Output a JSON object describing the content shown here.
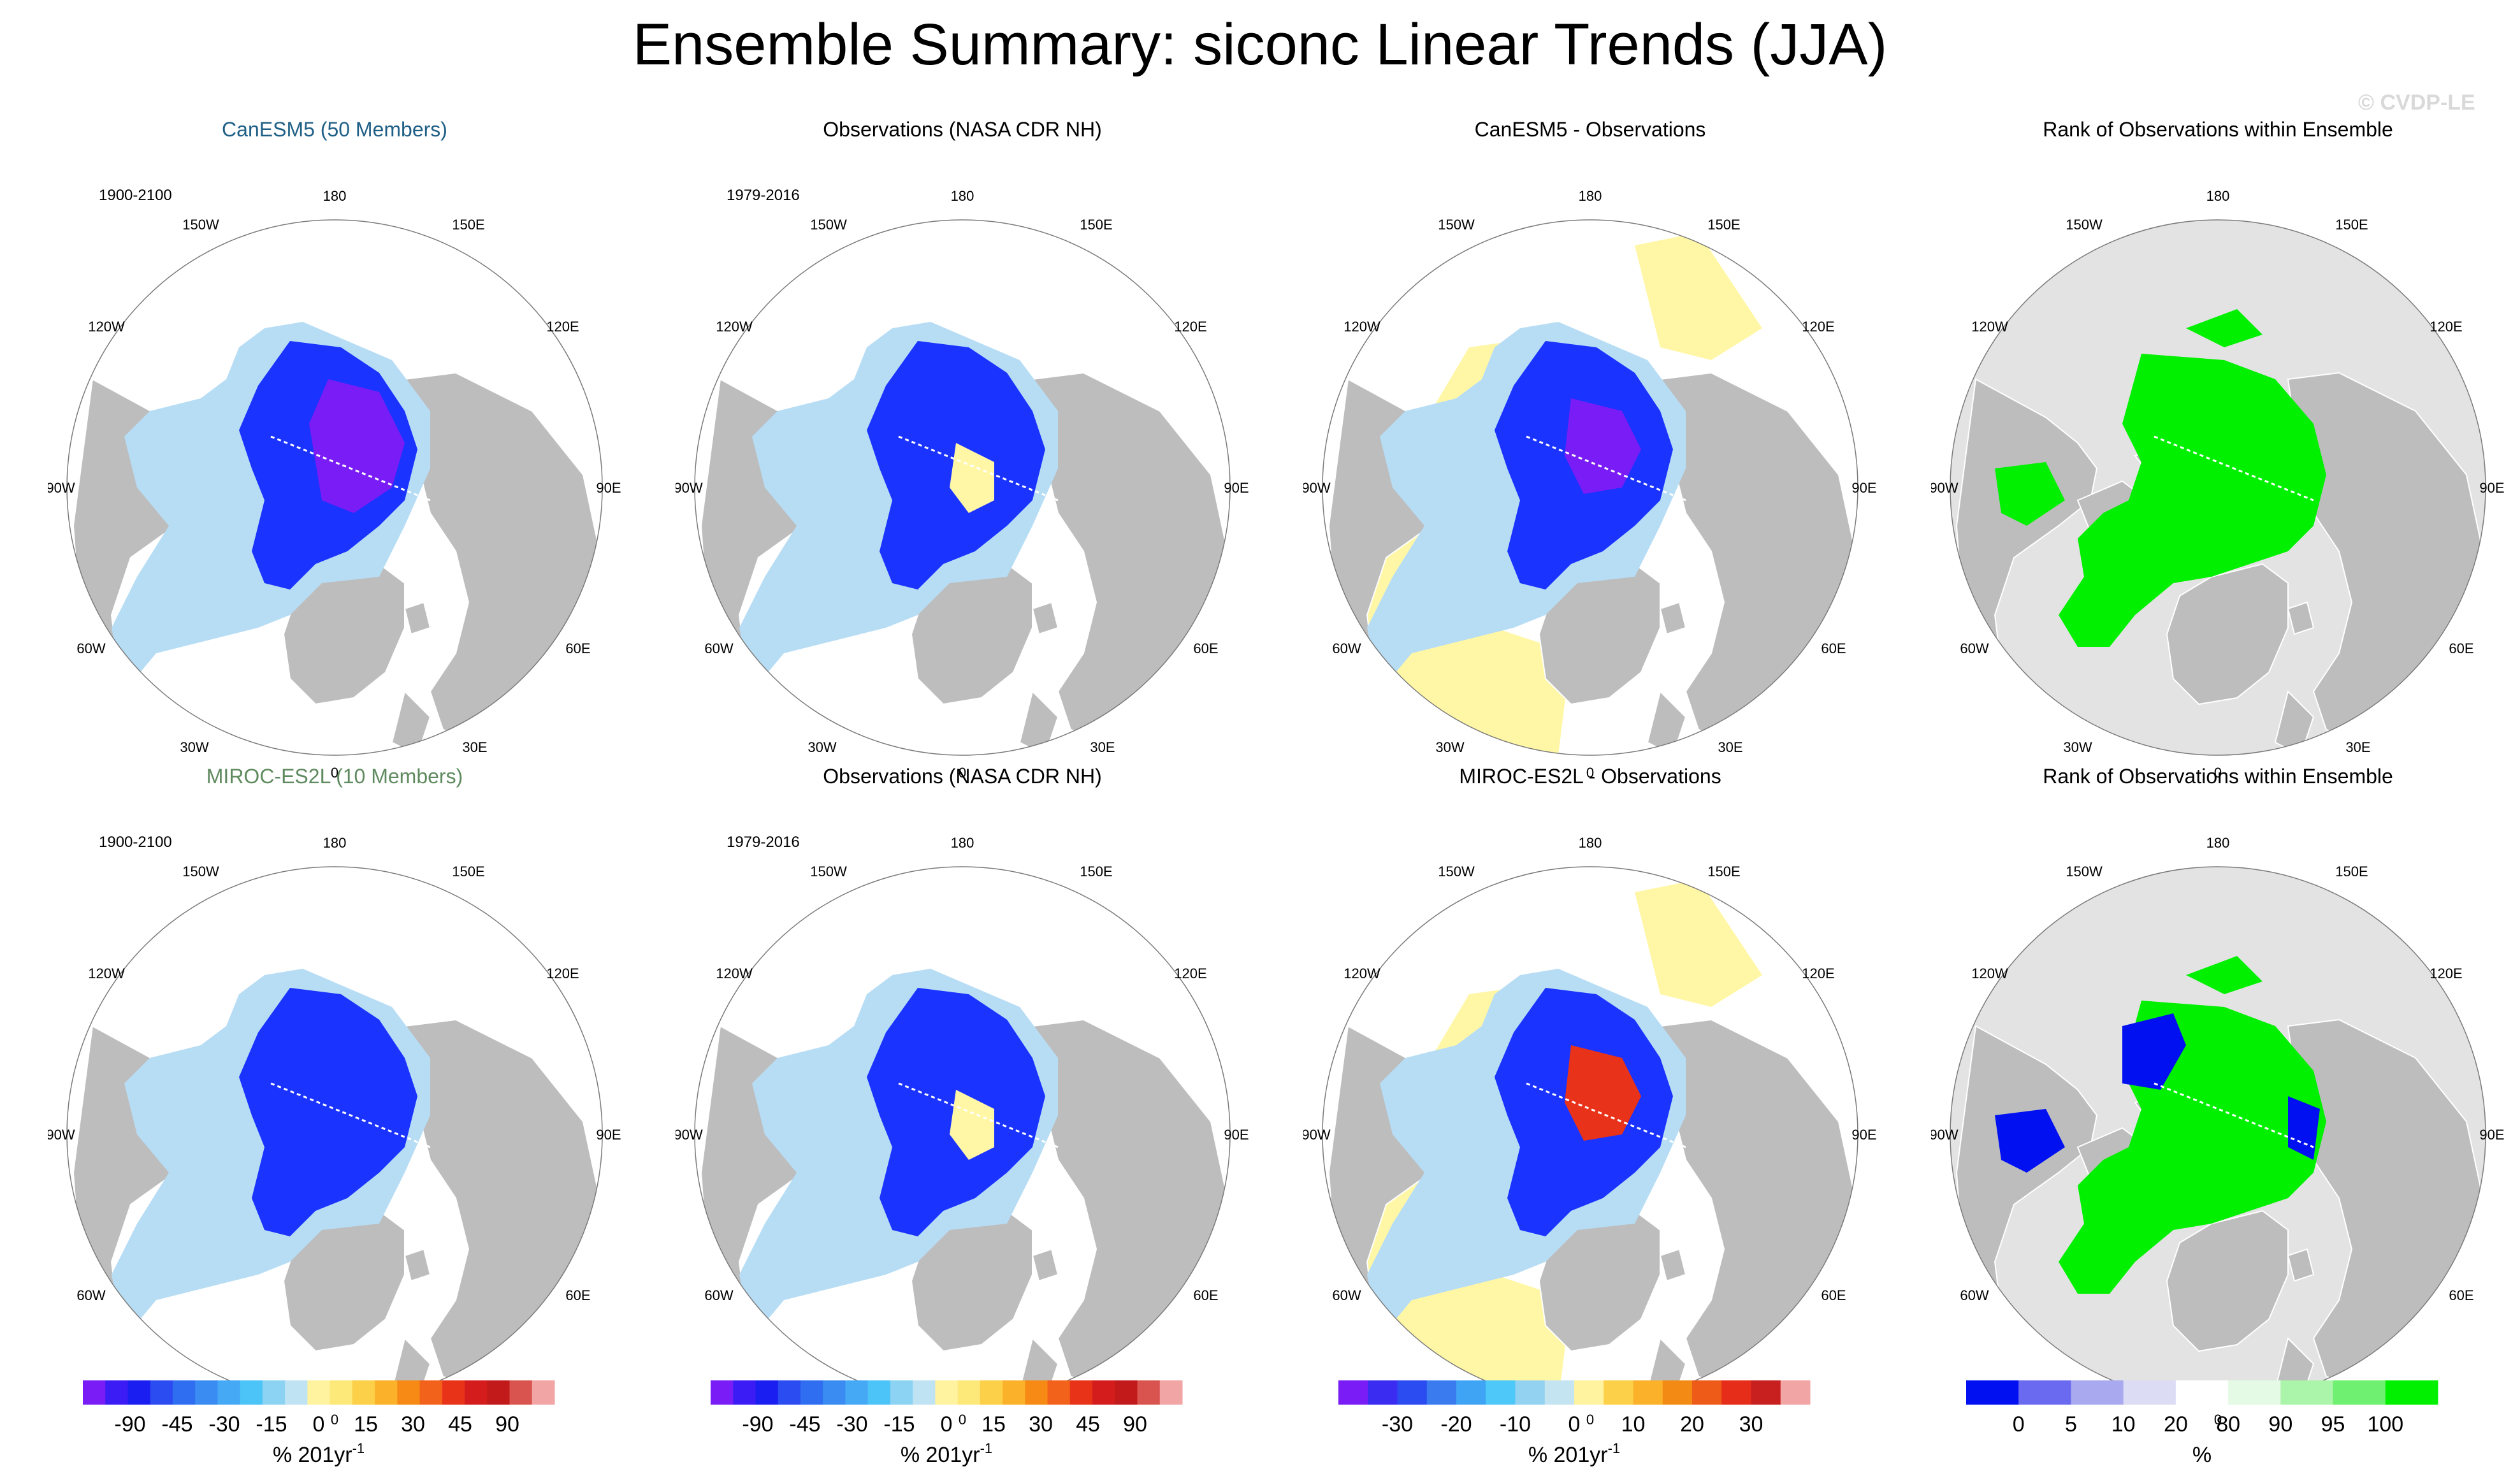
{
  "title": "Ensemble Summary: siconc Linear Trends (JJA)",
  "watermark": "© CVDP-LE",
  "colors": {
    "land": "#bdbdbd",
    "ocean": "#ffffff",
    "rank_background": "#e3e3e3",
    "canesm5_title": "#1f5f86",
    "miroc_title": "#5f8a5f",
    "pale_yellow": "#fff7a6",
    "trend_strong": "#7a1cf5",
    "trend_mid": "#1a33ff",
    "trend_light": "#b7ddf5",
    "rank_high": "#00f000",
    "rank_low": "#0010f0"
  },
  "lon_labels": {
    "top": "180",
    "bottom": "0",
    "l150": "150W",
    "r150": "150E",
    "l120": "120W",
    "r120": "120E",
    "l90": "90W",
    "r90": "90E",
    "l60": "60W",
    "r60": "60E",
    "l30": "30W",
    "r30": "30E"
  },
  "panels": [
    {
      "title": "CanESM5 (50 Members)",
      "period": "1900-2100"
    },
    {
      "title": "Observations (NASA CDR NH)",
      "period": "1979-2016"
    },
    {
      "title": "CanESM5 - Observations",
      "period": ""
    },
    {
      "title": "Rank of Observations within Ensemble",
      "period": ""
    },
    {
      "title": "MIROC-ES2L (10 Members)",
      "period": "1900-2100"
    },
    {
      "title": "Observations (NASA CDR NH)",
      "period": "1979-2016"
    },
    {
      "title": "MIROC-ES2L - Observations",
      "period": ""
    },
    {
      "title": "Rank of Observations within Ensemble",
      "period": ""
    }
  ],
  "colorbars": [
    {
      "ticks": [
        "-90",
        "-45",
        "-30",
        "-15",
        "0",
        "15",
        "30",
        "45",
        "90"
      ],
      "unit": "% 201yr",
      "unit_sup": "-1"
    },
    {
      "ticks": [
        "-90",
        "-45",
        "-30",
        "-15",
        "0",
        "15",
        "30",
        "45",
        "90"
      ],
      "unit": "% 201yr",
      "unit_sup": "-1"
    },
    {
      "ticks": [
        "-30",
        "-20",
        "-10",
        "0",
        "10",
        "20",
        "30"
      ],
      "unit": "% 201yr",
      "unit_sup": "-1"
    },
    {
      "ticks": [
        "0",
        "5",
        "10",
        "20",
        "80",
        "90",
        "95",
        "100"
      ],
      "unit": "%",
      "unit_sup": ""
    }
  ],
  "trend_palette": [
    "#7a1cf5",
    "#3c1cf5",
    "#1a1ef0",
    "#2a4cf0",
    "#2f6ef0",
    "#3a8cf2",
    "#45a9f6",
    "#4cc4f8",
    "#8cd3f3",
    "#bfe3f3",
    "#fff3a0",
    "#fde87a",
    "#fcd048",
    "#fbb22a",
    "#f78a14",
    "#f2621a",
    "#e83319",
    "#d41c1c",
    "#c21a1a",
    "#d9544f",
    "#f2a5a5"
  ],
  "diff_palette": [
    "#7a1cf5",
    "#3a2cf0",
    "#2a4cf0",
    "#3a7cf0",
    "#40a4f4",
    "#4ec8f8",
    "#93d2f0",
    "#c4e4f2",
    "#fff3a0",
    "#fdd04a",
    "#fbb22a",
    "#f38a14",
    "#ee5a18",
    "#e52d1a",
    "#c81f1f",
    "#f2a5a5"
  ],
  "rank_palette": [
    "#0010f0",
    "#6a6af0",
    "#a9a9f0",
    "#dcdcf5",
    "#ffffff",
    "#e4fae4",
    "#aaf5aa",
    "#70f070",
    "#00f000"
  ]
}
